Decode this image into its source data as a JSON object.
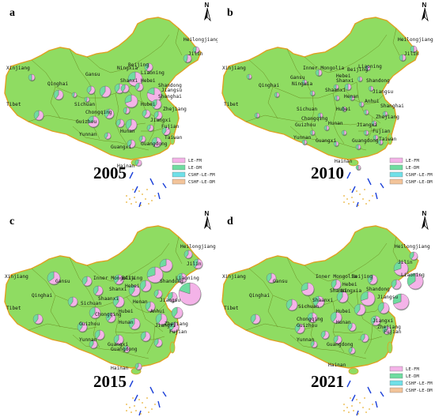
{
  "colors": {
    "land": "#8fdc62",
    "land_stroke": "#e0a020",
    "border": "#6b8e23",
    "dashes": "#1a3fd8",
    "islands": "#e8b030",
    "le_fm": "#f4b3e8",
    "le_dm": "#6fdca0",
    "cshf_le_fm": "#6fe0e8",
    "cshf_le_dm": "#f3c49a",
    "pie_edge": "#666666"
  },
  "icons": {
    "north_arrow": "north-arrow-icon"
  },
  "legend": {
    "items": [
      {
        "label": "LE-FM",
        "color_key": "le_fm"
      },
      {
        "label": "LE-DM",
        "color_key": "le_dm"
      },
      {
        "label": "CSHF-LE-FM",
        "color_key": "cshf_le_fm"
      },
      {
        "label": "CSHF-LE-DM",
        "color_key": "cshf_le_dm"
      }
    ]
  },
  "panels": [
    {
      "letter": "a",
      "year": "2005",
      "north_label": "N",
      "show_legend": true,
      "provinces": [
        "Heilongjiang",
        "Jilin",
        "Xinjiang",
        "Beijing",
        "Liaoning",
        "Ningxia",
        "Gansu",
        "Hebei",
        "Shanxi",
        "Shandong",
        "Qinghai",
        "Jiangsu",
        "Shanghai",
        "Tibet",
        "Sichuan",
        "Chongqing",
        "Hubei",
        "Zhejiang",
        "Guizhou",
        "Jiangxi",
        "Hunan",
        "Fujian",
        "Yunnan",
        "Guangxi",
        "Guangdong",
        "Taiwan",
        "Hainan"
      ],
      "pies": [
        {
          "le_fm": 0.55,
          "le_dm": 0.45,
          "r": 4
        },
        {
          "le_fm": 0.55,
          "le_dm": 0.45,
          "r": 5
        },
        {
          "le_fm": 0.5,
          "le_dm": 0.5,
          "r": 4
        },
        {
          "le_fm": 0.7,
          "le_dm": 0.3,
          "r": 9
        },
        {
          "le_fm": 0.6,
          "le_dm": 0.4,
          "r": 5
        },
        {
          "le_fm": 0.6,
          "le_dm": 0.4,
          "r": 6
        },
        {
          "le_fm": 0.6,
          "le_dm": 0.4,
          "r": 7
        },
        {
          "le_fm": 0.6,
          "le_dm": 0.4,
          "r": 5
        },
        {
          "le_fm": 0.6,
          "le_dm": 0.4,
          "r": 5
        },
        {
          "le_fm": 0.8,
          "le_dm": 0.2,
          "r": 9
        },
        {
          "le_fm": 0.7,
          "le_dm": 0.3,
          "r": 8
        },
        {
          "le_fm": 0.6,
          "le_dm": 0.4,
          "r": 5
        },
        {
          "le_fm": 0.6,
          "le_dm": 0.4,
          "r": 6
        },
        {
          "le_fm": 0.55,
          "le_dm": 0.45,
          "r": 4
        },
        {
          "le_fm": 0.55,
          "le_dm": 0.45,
          "r": 3
        },
        {
          "le_fm": 0.55,
          "le_dm": 0.45,
          "r": 3
        },
        {
          "le_fm": 0.6,
          "le_dm": 0.4,
          "r": 6
        },
        {
          "le_fm": 0.6,
          "le_dm": 0.4,
          "r": 5
        },
        {
          "le_fm": 0.6,
          "le_dm": 0.4,
          "r": 7
        },
        {
          "le_fm": 0.6,
          "le_dm": 0.4,
          "r": 6
        },
        {
          "le_fm": 0.6,
          "le_dm": 0.4,
          "r": 6
        },
        {
          "le_fm": 0.6,
          "le_dm": 0.4,
          "r": 5
        },
        {
          "le_fm": 0.7,
          "le_dm": 0.3,
          "r": 7
        },
        {
          "le_fm": 0.6,
          "le_dm": 0.4,
          "r": 5
        },
        {
          "le_fm": 0.6,
          "le_dm": 0.4,
          "r": 4
        },
        {
          "le_fm": 0.6,
          "le_dm": 0.4,
          "r": 5
        },
        {
          "le_fm": 0.6,
          "le_dm": 0.4,
          "r": 4
        },
        {
          "le_fm": 0.6,
          "le_dm": 0.4,
          "r": 6
        },
        {
          "le_fm": 0.6,
          "le_dm": 0.4,
          "r": 5
        },
        {
          "le_fm": 0.6,
          "le_dm": 0.4,
          "r": 4
        },
        {
          "le_fm": 0.6,
          "le_dm": 0.4,
          "r": 4
        }
      ]
    },
    {
      "letter": "b",
      "year": "2010",
      "north_label": "N",
      "show_legend": true,
      "provinces": [
        "Heilongjiang",
        "Jilin",
        "Xinjiang",
        "Inner Mongolia",
        "Beijing",
        "Liaoning",
        "Gansu",
        "Ningxia",
        "Hebei",
        "Shanxi",
        "Qinghai",
        "Shandong",
        "Shaanxi",
        "Henan",
        "Jiangsu",
        "Tibet",
        "Sichuan",
        "Hubei",
        "Anhui",
        "Shanghai",
        "Chongqing",
        "Zhejiang",
        "Guizhou",
        "Hunan",
        "Jiangxi",
        "Fujian",
        "Yunnan",
        "Guangxi",
        "Guangdong",
        "Taiwan",
        "Hainan"
      ],
      "pies": [
        {
          "le_fm": 0.5,
          "le_dm": 0.5,
          "r": 4
        },
        {
          "le_fm": 0.5,
          "le_dm": 0.5,
          "r": 4
        },
        {
          "le_fm": 0.5,
          "le_dm": 0.5,
          "r": 3
        },
        {
          "le_fm": 0.5,
          "le_dm": 0.5,
          "r": 4
        },
        {
          "le_fm": 0.5,
          "le_dm": 0.5,
          "r": 3
        },
        {
          "le_fm": 0.5,
          "le_dm": 0.5,
          "r": 3
        },
        {
          "le_fm": 0.5,
          "le_dm": 0.5,
          "r": 3
        },
        {
          "le_fm": 0.5,
          "le_dm": 0.5,
          "r": 3
        },
        {
          "le_fm": 0.5,
          "le_dm": 0.5,
          "r": 3
        },
        {
          "le_fm": 0.5,
          "le_dm": 0.5,
          "r": 4
        },
        {
          "le_fm": 0.5,
          "le_dm": 0.5,
          "r": 3
        },
        {
          "le_fm": 0.5,
          "le_dm": 0.5,
          "r": 3
        },
        {
          "le_fm": 0.5,
          "le_dm": 0.5,
          "r": 3
        },
        {
          "le_fm": 0.5,
          "le_dm": 0.5,
          "r": 3
        },
        {
          "le_fm": 0.5,
          "le_dm": 0.5,
          "r": 3
        },
        {
          "le_fm": 0.5,
          "le_dm": 0.5,
          "r": 3
        },
        {
          "le_fm": 0.5,
          "le_dm": 0.5,
          "r": 3
        },
        {
          "le_fm": 0.5,
          "le_dm": 0.5,
          "r": 3
        },
        {
          "le_fm": 0.5,
          "le_dm": 0.5,
          "r": 3
        },
        {
          "le_fm": 0.5,
          "le_dm": 0.5,
          "r": 3
        },
        {
          "le_fm": 0.5,
          "le_dm": 0.5,
          "r": 3
        },
        {
          "le_fm": 0.5,
          "le_dm": 0.5,
          "r": 3
        },
        {
          "le_fm": 0.5,
          "le_dm": 0.5,
          "r": 3
        },
        {
          "le_fm": 0.5,
          "le_dm": 0.5,
          "r": 3
        },
        {
          "le_fm": 0.5,
          "le_dm": 0.5,
          "r": 3
        },
        {
          "le_fm": 0.5,
          "le_dm": 0.5,
          "r": 3
        },
        {
          "le_fm": 0.5,
          "le_dm": 0.5,
          "r": 3
        },
        {
          "le_fm": 0.5,
          "le_dm": 0.5,
          "r": 3
        },
        {
          "le_fm": 0.5,
          "le_dm": 0.5,
          "r": 3
        },
        {
          "le_fm": 0.5,
          "le_dm": 0.5,
          "r": 3
        },
        {
          "le_fm": 0.5,
          "le_dm": 0.5,
          "r": 3
        }
      ]
    },
    {
      "letter": "c",
      "year": "2015",
      "north_label": "N",
      "show_legend": false,
      "provinces": [
        "Heilongjiang",
        "Jilin",
        "Xinjiang",
        "Gansu",
        "Inner Mongolia",
        "Beijing",
        "Liaoning",
        "Hebei",
        "Shanxi",
        "Qinghai",
        "Shandong",
        "Shaanxi",
        "Henan",
        "Tibet",
        "Sichuan",
        "Hubei",
        "Anhui",
        "Jiangsu",
        "Chongqing",
        "Guizhou",
        "Hunan",
        "Jiangxi",
        "Zhejiang",
        "Fujian",
        "Yunnan",
        "Guangxi",
        "Guangdong",
        "Hainan"
      ],
      "pies": [
        {
          "le_fm": 0.6,
          "le_dm": 0.4,
          "r": 5
        },
        {
          "le_fm": 0.7,
          "le_dm": 0.3,
          "r": 8
        },
        {
          "le_fm": 0.65,
          "le_dm": 0.35,
          "r": 8
        },
        {
          "le_fm": 0.6,
          "le_dm": 0.4,
          "r": 6
        },
        {
          "le_fm": 0.6,
          "le_dm": 0.4,
          "r": 6
        },
        {
          "le_fm": 0.7,
          "le_dm": 0.3,
          "r": 10
        },
        {
          "le_fm": 0.6,
          "le_dm": 0.4,
          "r": 6
        },
        {
          "le_fm": 0.6,
          "le_dm": 0.4,
          "r": 6
        },
        {
          "le_fm": 0.6,
          "le_dm": 0.4,
          "r": 7
        },
        {
          "le_fm": 0.8,
          "le_dm": 0.2,
          "r": 14
        },
        {
          "le_fm": 0.6,
          "le_dm": 0.4,
          "r": 6
        },
        {
          "le_fm": 0.6,
          "le_dm": 0.4,
          "r": 7
        },
        {
          "le_fm": 0.6,
          "le_dm": 0.4,
          "r": 5
        },
        {
          "le_fm": 0.6,
          "le_dm": 0.4,
          "r": 6
        },
        {
          "le_fm": 0.6,
          "le_dm": 0.4,
          "r": 7
        },
        {
          "le_fm": 0.6,
          "le_dm": 0.4,
          "r": 6
        },
        {
          "le_fm": 0.6,
          "le_dm": 0.4,
          "r": 7
        },
        {
          "le_fm": 0.6,
          "le_dm": 0.4,
          "r": 6
        },
        {
          "le_fm": 0.6,
          "le_dm": 0.4,
          "r": 7
        },
        {
          "le_fm": 0.6,
          "le_dm": 0.4,
          "r": 6
        },
        {
          "le_fm": 0.6,
          "le_dm": 0.4,
          "r": 6
        },
        {
          "le_fm": 0.6,
          "le_dm": 0.4,
          "r": 7
        },
        {
          "le_fm": 0.6,
          "le_dm": 0.4,
          "r": 6
        },
        {
          "le_fm": 0.6,
          "le_dm": 0.4,
          "r": 7
        },
        {
          "le_fm": 0.6,
          "le_dm": 0.4,
          "r": 6
        },
        {
          "le_fm": 0.6,
          "le_dm": 0.4,
          "r": 6
        },
        {
          "le_fm": 0.6,
          "le_dm": 0.4,
          "r": 6
        },
        {
          "le_fm": 0.6,
          "le_dm": 0.4,
          "r": 6
        },
        {
          "le_fm": 0.6,
          "le_dm": 0.4,
          "r": 5
        },
        {
          "le_fm": 0.6,
          "le_dm": 0.4,
          "r": 5
        },
        {
          "le_fm": 0.6,
          "le_dm": 0.4,
          "r": 4
        },
        {
          "le_fm": 0.6,
          "le_dm": 0.4,
          "r": 4
        }
      ]
    },
    {
      "letter": "d",
      "year": "2021",
      "north_label": "N",
      "show_legend": true,
      "provinces": [
        "Heilongjiang",
        "Jilin",
        "Liaoning",
        "Xinjiang",
        "Gansu",
        "Inner Mongolia",
        "Beijing",
        "Hebei",
        "Shanxi",
        "Ningxia",
        "Qinghai",
        "Shaanxi",
        "Shandong",
        "Jiangsu",
        "Tibet",
        "Sichuan",
        "Hubei",
        "Chongqing",
        "Zhejiang",
        "Guizhou",
        "Hunan",
        "Jiangxi",
        "Fujian",
        "Yunnan",
        "Guangdong",
        "Hainan"
      ],
      "pies": [
        {
          "le_fm": 0.6,
          "le_dm": 0.4,
          "r": 5
        },
        {
          "le_fm": 0.7,
          "le_dm": 0.3,
          "r": 9
        },
        {
          "le_fm": 0.65,
          "le_dm": 0.35,
          "r": 10
        },
        {
          "le_fm": 0.6,
          "le_dm": 0.4,
          "r": 6
        },
        {
          "le_fm": 0.7,
          "le_dm": 0.3,
          "r": 8
        },
        {
          "le_fm": 0.6,
          "le_dm": 0.4,
          "r": 6
        },
        {
          "le_fm": 0.6,
          "le_dm": 0.4,
          "r": 6
        },
        {
          "le_fm": 0.6,
          "le_dm": 0.4,
          "r": 6
        },
        {
          "le_fm": 0.7,
          "le_dm": 0.3,
          "r": 9
        },
        {
          "le_fm": 0.6,
          "le_dm": 0.4,
          "r": 7
        },
        {
          "le_fm": 0.7,
          "le_dm": 0.3,
          "r": 10
        },
        {
          "le_fm": 0.6,
          "le_dm": 0.4,
          "r": 7
        },
        {
          "le_fm": 0.6,
          "le_dm": 0.4,
          "r": 7
        },
        {
          "le_fm": 0.6,
          "le_dm": 0.4,
          "r": 7
        },
        {
          "le_fm": 0.6,
          "le_dm": 0.4,
          "r": 7
        },
        {
          "le_fm": 0.6,
          "le_dm": 0.4,
          "r": 6
        },
        {
          "le_fm": 0.6,
          "le_dm": 0.4,
          "r": 7
        },
        {
          "le_fm": 0.6,
          "le_dm": 0.4,
          "r": 6
        },
        {
          "le_fm": 0.6,
          "le_dm": 0.4,
          "r": 6
        },
        {
          "le_fm": 0.6,
          "le_dm": 0.4,
          "r": 5
        },
        {
          "le_fm": 0.6,
          "le_dm": 0.4,
          "r": 6
        },
        {
          "le_fm": 0.6,
          "le_dm": 0.4,
          "r": 5
        },
        {
          "le_fm": 0.6,
          "le_dm": 0.4,
          "r": 5
        },
        {
          "le_fm": 0.6,
          "le_dm": 0.4,
          "r": 5
        },
        {
          "le_fm": 0.6,
          "le_dm": 0.4,
          "r": 5
        },
        {
          "le_fm": 0.6,
          "le_dm": 0.4,
          "r": 4
        },
        {
          "le_fm": 0.6,
          "le_dm": 0.4,
          "r": 4
        }
      ]
    }
  ]
}
